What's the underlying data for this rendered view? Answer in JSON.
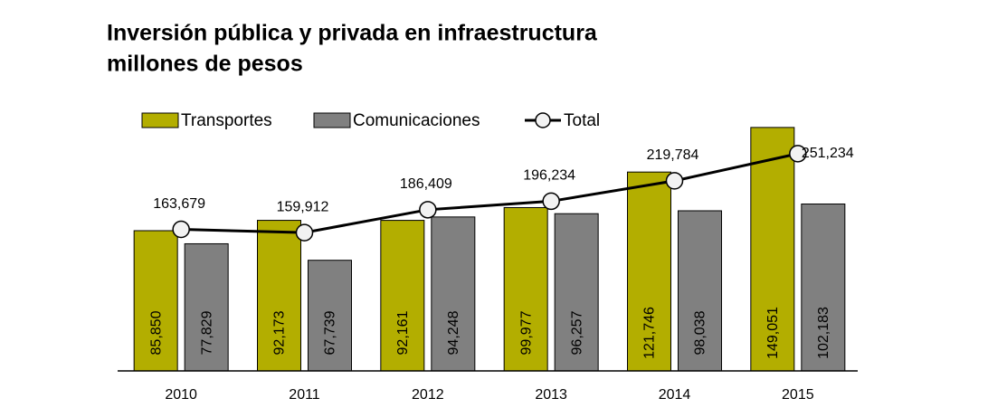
{
  "chart_data": {
    "type": "bar-line",
    "title": "Inversión pública y privada en infraestructura",
    "subtitle": "millones de pesos",
    "categories": [
      "2010",
      "2011",
      "2012",
      "2013",
      "2014",
      "2015"
    ],
    "series": [
      {
        "name": "Transportes",
        "type": "bar",
        "color": "#b3ae00",
        "values": [
          85850,
          92173,
          92161,
          99977,
          121746,
          149051
        ],
        "value_labels": [
          "85,850",
          "92,173",
          "92,161",
          "99,977",
          "121,746",
          "149,051"
        ]
      },
      {
        "name": "Comunicaciones",
        "type": "bar",
        "color": "#808080",
        "values": [
          77829,
          67739,
          94248,
          96257,
          98038,
          102183
        ],
        "value_labels": [
          "77,829",
          "67,739",
          "94,248",
          "96,257",
          "98,038",
          "102,183"
        ]
      },
      {
        "name": "Total",
        "type": "line",
        "axis": "y2",
        "color": "#000000",
        "values": [
          163679,
          159912,
          186409,
          196234,
          219784,
          251234
        ],
        "value_labels": [
          "163,679",
          "159,912",
          "186,409",
          "196,234",
          "219,784",
          "251,234"
        ]
      }
    ],
    "ylim": [
      0,
      180000
    ],
    "y2lim": [
      0,
      340000
    ]
  }
}
